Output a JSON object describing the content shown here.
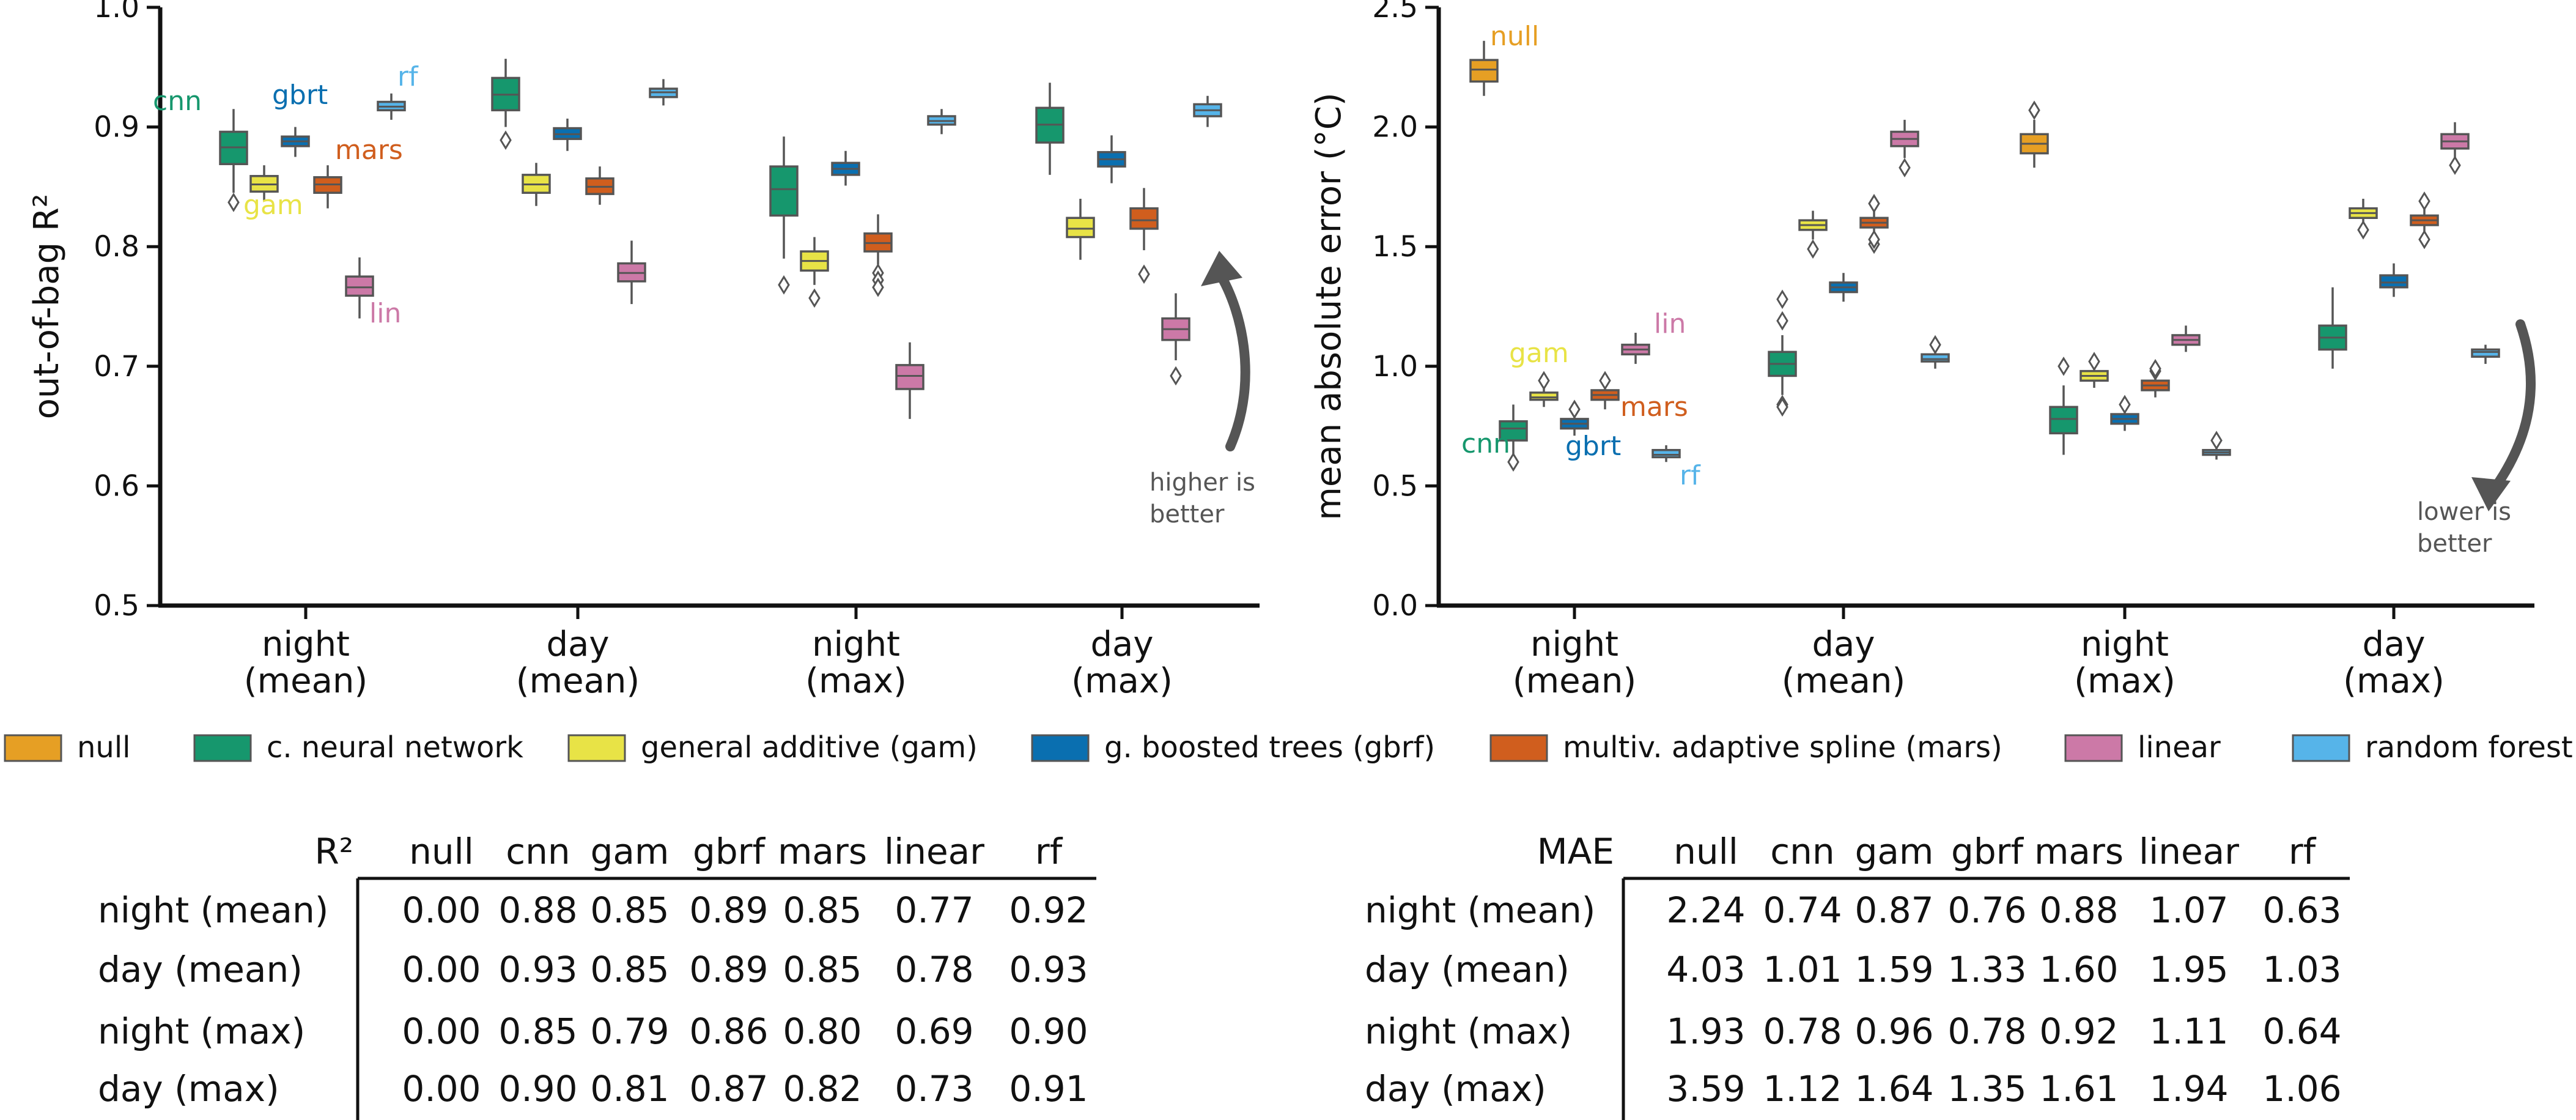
{
  "colors": {
    "null": "#E69F24",
    "cnn": "#16976D",
    "gam": "#E8E346",
    "gbrt": "#0A6FB0",
    "mars": "#D05E1E",
    "lin": "#CC79A7",
    "rf": "#56B4E9"
  },
  "chart_data": [
    {
      "type": "box",
      "ylabel": "out-of-bag R²",
      "ylim": [
        0.5,
        1.0
      ],
      "yticks": [
        "0.5",
        "0.6",
        "0.7",
        "0.8",
        "0.9",
        "1.0"
      ],
      "categories": [
        {
          "line1": "night",
          "line2": "(mean)"
        },
        {
          "line1": "day",
          "line2": "(mean)"
        },
        {
          "line1": "night",
          "line2": "(max)"
        },
        {
          "line1": "day",
          "line2": "(max)"
        }
      ],
      "annotation": [
        "higher is",
        "better"
      ],
      "series": [
        {
          "key": "cnn",
          "boxes": [
            {
              "q1": 0.869,
              "med": 0.883,
              "q3": 0.896,
              "lo": 0.845,
              "hi": 0.915,
              "out": [
                0.837
              ]
            },
            {
              "q1": 0.914,
              "med": 0.927,
              "q3": 0.941,
              "lo": 0.9,
              "hi": 0.957,
              "out": [
                0.889
              ]
            },
            {
              "q1": 0.826,
              "med": 0.848,
              "q3": 0.867,
              "lo": 0.79,
              "hi": 0.892,
              "out": [
                0.768
              ]
            },
            {
              "q1": 0.887,
              "med": 0.902,
              "q3": 0.916,
              "lo": 0.86,
              "hi": 0.937,
              "out": []
            }
          ]
        },
        {
          "key": "gam",
          "boxes": [
            {
              "q1": 0.846,
              "med": 0.852,
              "q3": 0.859,
              "lo": 0.838,
              "hi": 0.868,
              "out": []
            },
            {
              "q1": 0.845,
              "med": 0.852,
              "q3": 0.86,
              "lo": 0.834,
              "hi": 0.87,
              "out": []
            },
            {
              "q1": 0.78,
              "med": 0.788,
              "q3": 0.796,
              "lo": 0.768,
              "hi": 0.808,
              "out": [
                0.757
              ]
            },
            {
              "q1": 0.808,
              "med": 0.815,
              "q3": 0.824,
              "lo": 0.789,
              "hi": 0.84,
              "out": []
            }
          ]
        },
        {
          "key": "gbrt",
          "boxes": [
            {
              "q1": 0.884,
              "med": 0.888,
              "q3": 0.892,
              "lo": 0.875,
              "hi": 0.9,
              "out": []
            },
            {
              "q1": 0.89,
              "med": 0.894,
              "q3": 0.899,
              "lo": 0.88,
              "hi": 0.907,
              "out": []
            },
            {
              "q1": 0.86,
              "med": 0.865,
              "q3": 0.87,
              "lo": 0.851,
              "hi": 0.88,
              "out": []
            },
            {
              "q1": 0.867,
              "med": 0.873,
              "q3": 0.879,
              "lo": 0.853,
              "hi": 0.893,
              "out": []
            }
          ]
        },
        {
          "key": "mars",
          "boxes": [
            {
              "q1": 0.845,
              "med": 0.852,
              "q3": 0.858,
              "lo": 0.832,
              "hi": 0.868,
              "out": []
            },
            {
              "q1": 0.844,
              "med": 0.85,
              "q3": 0.857,
              "lo": 0.835,
              "hi": 0.867,
              "out": []
            },
            {
              "q1": 0.796,
              "med": 0.803,
              "q3": 0.811,
              "lo": 0.785,
              "hi": 0.827,
              "out": [
                0.778,
                0.772,
                0.766
              ]
            },
            {
              "q1": 0.815,
              "med": 0.822,
              "q3": 0.832,
              "lo": 0.797,
              "hi": 0.849,
              "out": [
                0.777
              ]
            }
          ]
        },
        {
          "key": "lin",
          "boxes": [
            {
              "q1": 0.759,
              "med": 0.766,
              "q3": 0.775,
              "lo": 0.74,
              "hi": 0.791,
              "out": []
            },
            {
              "q1": 0.771,
              "med": 0.778,
              "q3": 0.786,
              "lo": 0.752,
              "hi": 0.805,
              "out": []
            },
            {
              "q1": 0.681,
              "med": 0.692,
              "q3": 0.701,
              "lo": 0.656,
              "hi": 0.72,
              "out": []
            },
            {
              "q1": 0.722,
              "med": 0.731,
              "q3": 0.74,
              "lo": 0.705,
              "hi": 0.761,
              "out": [
                0.692
              ]
            }
          ]
        },
        {
          "key": "rf",
          "boxes": [
            {
              "q1": 0.914,
              "med": 0.917,
              "q3": 0.921,
              "lo": 0.906,
              "hi": 0.928,
              "out": []
            },
            {
              "q1": 0.925,
              "med": 0.929,
              "q3": 0.932,
              "lo": 0.918,
              "hi": 0.94,
              "out": []
            },
            {
              "q1": 0.902,
              "med": 0.905,
              "q3": 0.909,
              "lo": 0.894,
              "hi": 0.915,
              "out": []
            },
            {
              "q1": 0.909,
              "med": 0.914,
              "q3": 0.919,
              "lo": 0.9,
              "hi": 0.926,
              "out": []
            }
          ]
        }
      ],
      "model_labels": [
        {
          "key": "cnn",
          "text": "cnn"
        },
        {
          "key": "gbrt",
          "text": "gbrt"
        },
        {
          "key": "rf",
          "text": "rf"
        },
        {
          "key": "mars",
          "text": "mars"
        },
        {
          "key": "gam",
          "text": "gam"
        },
        {
          "key": "lin",
          "text": "lin"
        }
      ]
    },
    {
      "type": "box",
      "ylabel": "mean absolute error (°C)",
      "ylim": [
        0.0,
        2.5
      ],
      "yticks": [
        "0.0",
        "0.5",
        "1.0",
        "1.5",
        "2.0",
        "2.5"
      ],
      "categories": [
        {
          "line1": "night",
          "line2": "(mean)"
        },
        {
          "line1": "day",
          "line2": "(mean)"
        },
        {
          "line1": "night",
          "line2": "(max)"
        },
        {
          "line1": "day",
          "line2": "(max)"
        }
      ],
      "annotation": [
        "lower is",
        "better"
      ],
      "series": [
        {
          "key": "null",
          "boxes": [
            {
              "q1": 2.19,
              "med": 2.24,
              "q3": 2.28,
              "lo": 2.13,
              "hi": 2.36,
              "out": []
            },
            null,
            {
              "q1": 1.89,
              "med": 1.93,
              "q3": 1.97,
              "lo": 1.83,
              "hi": 2.03,
              "out": [
                2.07
              ]
            },
            null
          ]
        },
        {
          "key": "cnn",
          "boxes": [
            {
              "q1": 0.69,
              "med": 0.74,
              "q3": 0.77,
              "lo": 0.63,
              "hi": 0.84,
              "out": [
                0.6
              ]
            },
            {
              "q1": 0.96,
              "med": 1.01,
              "q3": 1.06,
              "lo": 0.88,
              "hi": 1.13,
              "out": [
                0.84,
                0.83,
                1.19,
                1.28
              ]
            },
            {
              "q1": 0.72,
              "med": 0.78,
              "q3": 0.83,
              "lo": 0.63,
              "hi": 0.92,
              "out": [
                1.0
              ]
            },
            {
              "q1": 1.07,
              "med": 1.12,
              "q3": 1.17,
              "lo": 0.99,
              "hi": 1.33,
              "out": []
            }
          ]
        },
        {
          "key": "gam",
          "boxes": [
            {
              "q1": 0.86,
              "med": 0.87,
              "q3": 0.89,
              "lo": 0.83,
              "hi": 0.91,
              "out": [
                0.94
              ]
            },
            {
              "q1": 1.57,
              "med": 1.59,
              "q3": 1.61,
              "lo": 1.53,
              "hi": 1.65,
              "out": [
                1.49
              ]
            },
            {
              "q1": 0.94,
              "med": 0.96,
              "q3": 0.98,
              "lo": 0.91,
              "hi": 1.0,
              "out": [
                1.02
              ]
            },
            {
              "q1": 1.62,
              "med": 1.64,
              "q3": 1.66,
              "lo": 1.59,
              "hi": 1.7,
              "out": [
                1.57
              ]
            }
          ]
        },
        {
          "key": "gbrt",
          "boxes": [
            {
              "q1": 0.74,
              "med": 0.76,
              "q3": 0.78,
              "lo": 0.71,
              "hi": 0.8,
              "out": [
                0.82
              ]
            },
            {
              "q1": 1.31,
              "med": 1.33,
              "q3": 1.35,
              "lo": 1.27,
              "hi": 1.39,
              "out": []
            },
            {
              "q1": 0.76,
              "med": 0.78,
              "q3": 0.8,
              "lo": 0.73,
              "hi": 0.82,
              "out": [
                0.84
              ]
            },
            {
              "q1": 1.33,
              "med": 1.35,
              "q3": 1.38,
              "lo": 1.29,
              "hi": 1.43,
              "out": []
            }
          ]
        },
        {
          "key": "mars",
          "boxes": [
            {
              "q1": 0.86,
              "med": 0.88,
              "q3": 0.9,
              "lo": 0.82,
              "hi": 0.92,
              "out": [
                0.94
              ]
            },
            {
              "q1": 1.58,
              "med": 1.6,
              "q3": 1.62,
              "lo": 1.54,
              "hi": 1.66,
              "out": [
                1.51,
                1.53,
                1.68
              ]
            },
            {
              "q1": 0.9,
              "med": 0.92,
              "q3": 0.94,
              "lo": 0.87,
              "hi": 0.96,
              "out": [
                0.98,
                0.99
              ]
            },
            {
              "q1": 1.59,
              "med": 1.61,
              "q3": 1.63,
              "lo": 1.55,
              "hi": 1.67,
              "out": [
                1.53,
                1.69
              ]
            }
          ]
        },
        {
          "key": "lin",
          "boxes": [
            {
              "q1": 1.05,
              "med": 1.07,
              "q3": 1.09,
              "lo": 1.01,
              "hi": 1.14,
              "out": []
            },
            {
              "q1": 1.92,
              "med": 1.95,
              "q3": 1.98,
              "lo": 1.87,
              "hi": 2.03,
              "out": [
                1.83
              ]
            },
            {
              "q1": 1.09,
              "med": 1.11,
              "q3": 1.13,
              "lo": 1.06,
              "hi": 1.17,
              "out": []
            },
            {
              "q1": 1.91,
              "med": 1.94,
              "q3": 1.97,
              "lo": 1.87,
              "hi": 2.02,
              "out": [
                1.84
              ]
            }
          ]
        },
        {
          "key": "rf",
          "boxes": [
            {
              "q1": 0.62,
              "med": 0.63,
              "q3": 0.65,
              "lo": 0.6,
              "hi": 0.67,
              "out": []
            },
            {
              "q1": 1.02,
              "med": 1.03,
              "q3": 1.05,
              "lo": 0.99,
              "hi": 1.07,
              "out": [
                1.09
              ]
            },
            {
              "q1": 0.63,
              "med": 0.64,
              "q3": 0.65,
              "lo": 0.61,
              "hi": 0.66,
              "out": [
                0.69
              ]
            },
            {
              "q1": 1.04,
              "med": 1.06,
              "q3": 1.07,
              "lo": 1.01,
              "hi": 1.09,
              "out": []
            }
          ]
        }
      ],
      "model_labels": [
        {
          "key": "null",
          "text": "null"
        },
        {
          "key": "lin",
          "text": "lin"
        },
        {
          "key": "gam",
          "text": "gam"
        },
        {
          "key": "mars",
          "text": "mars"
        },
        {
          "key": "cnn",
          "text": "cnn"
        },
        {
          "key": "gbrt",
          "text": "gbrt"
        },
        {
          "key": "rf",
          "text": "rf"
        }
      ]
    }
  ],
  "legend": [
    {
      "key": "null",
      "label": "null"
    },
    {
      "key": "cnn",
      "label": "c. neural network"
    },
    {
      "key": "gam",
      "label": "general additive (gam)"
    },
    {
      "key": "gbrt",
      "label": "g. boosted trees (gbrf)"
    },
    {
      "key": "mars",
      "label": "multiv. adaptive spline (mars)"
    },
    {
      "key": "lin",
      "label": "linear"
    },
    {
      "key": "rf",
      "label": "random forest"
    }
  ],
  "tables": [
    {
      "corner": "R²",
      "columns": [
        "null",
        "cnn",
        "gam",
        "gbrf",
        "mars",
        "linear",
        "rf"
      ],
      "rows": [
        {
          "label": "night (mean)",
          "values": [
            "0.00",
            "0.88",
            "0.85",
            "0.89",
            "0.85",
            "0.77",
            "0.92"
          ]
        },
        {
          "label": "day (mean)",
          "values": [
            "0.00",
            "0.93",
            "0.85",
            "0.89",
            "0.85",
            "0.78",
            "0.93"
          ]
        },
        {
          "label": "night (max)",
          "values": [
            "0.00",
            "0.85",
            "0.79",
            "0.86",
            "0.80",
            "0.69",
            "0.90"
          ]
        },
        {
          "label": "day (max)",
          "values": [
            "0.00",
            "0.90",
            "0.81",
            "0.87",
            "0.82",
            "0.73",
            "0.91"
          ]
        }
      ]
    },
    {
      "corner": "MAE",
      "columns": [
        "null",
        "cnn",
        "gam",
        "gbrf",
        "mars",
        "linear",
        "rf"
      ],
      "rows": [
        {
          "label": "night (mean)",
          "values": [
            "2.24",
            "0.74",
            "0.87",
            "0.76",
            "0.88",
            "1.07",
            "0.63"
          ]
        },
        {
          "label": "day (mean)",
          "values": [
            "4.03",
            "1.01",
            "1.59",
            "1.33",
            "1.60",
            "1.95",
            "1.03"
          ]
        },
        {
          "label": "night (max)",
          "values": [
            "1.93",
            "0.78",
            "0.96",
            "0.78",
            "0.92",
            "1.11",
            "0.64"
          ]
        },
        {
          "label": "day (max)",
          "values": [
            "3.59",
            "1.12",
            "1.64",
            "1.35",
            "1.61",
            "1.94",
            "1.06"
          ]
        }
      ]
    }
  ]
}
